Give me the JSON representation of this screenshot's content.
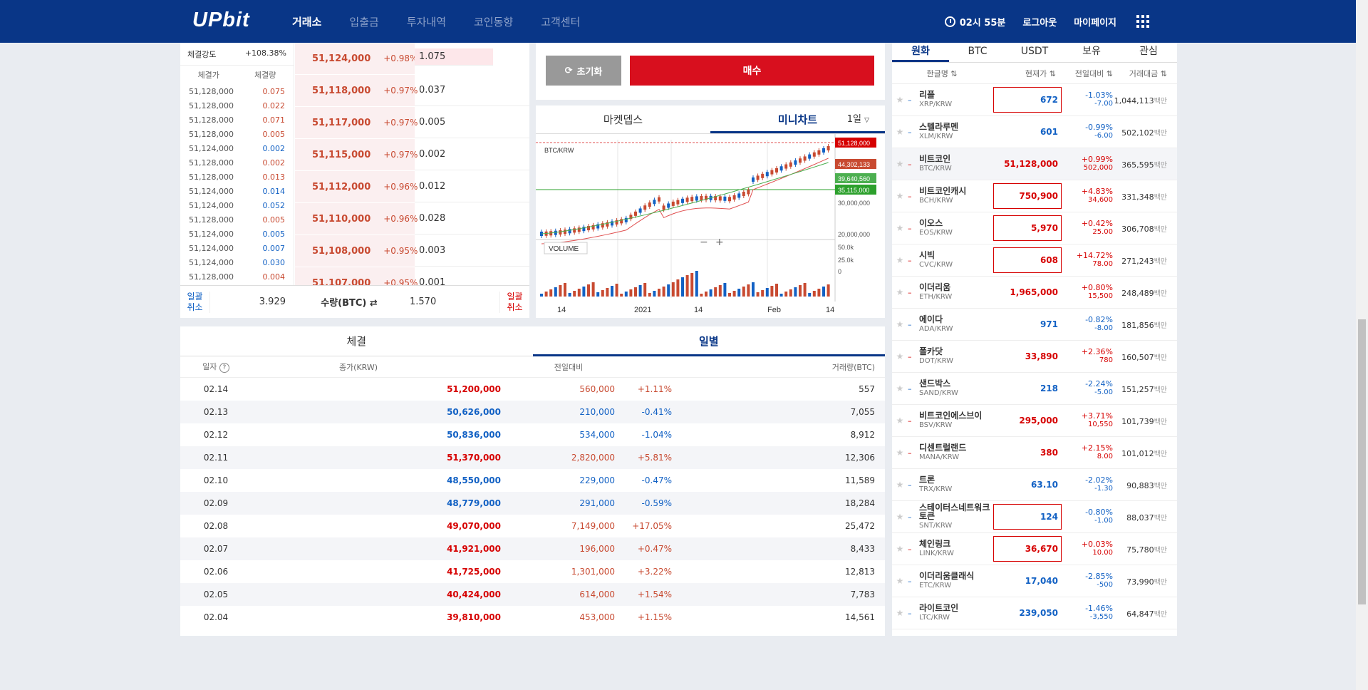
{
  "header": {
    "logo": "UPbit",
    "nav": [
      "거래소",
      "입출금",
      "투자내역",
      "코인동향",
      "고객센터"
    ],
    "time": "02시 55분",
    "logout": "로그아웃",
    "mypage": "마이페이지"
  },
  "trades": {
    "strength_label": "체결강도",
    "strength_value": "+108.38%",
    "col_price": "체결가",
    "col_qty": "체결량",
    "rows": [
      {
        "p": "51,128,000",
        "q": "0.075",
        "c": "red"
      },
      {
        "p": "51,128,000",
        "q": "0.022",
        "c": "red"
      },
      {
        "p": "51,128,000",
        "q": "0.071",
        "c": "red"
      },
      {
        "p": "51,128,000",
        "q": "0.005",
        "c": "red"
      },
      {
        "p": "51,124,000",
        "q": "0.002",
        "c": "blue"
      },
      {
        "p": "51,128,000",
        "q": "0.002",
        "c": "red"
      },
      {
        "p": "51,128,000",
        "q": "0.013",
        "c": "red"
      },
      {
        "p": "51,124,000",
        "q": "0.014",
        "c": "blue"
      },
      {
        "p": "51,124,000",
        "q": "0.052",
        "c": "blue"
      },
      {
        "p": "51,128,000",
        "q": "0.005",
        "c": "red"
      },
      {
        "p": "51,124,000",
        "q": "0.005",
        "c": "blue"
      },
      {
        "p": "51,124,000",
        "q": "0.007",
        "c": "blue"
      },
      {
        "p": "51,124,000",
        "q": "0.030",
        "c": "blue"
      },
      {
        "p": "51,128,000",
        "q": "0.004",
        "c": "red"
      }
    ]
  },
  "asks": [
    {
      "price": "51,124,000",
      "pct": "+0.98%",
      "qty": "1.075"
    },
    {
      "price": "51,118,000",
      "pct": "+0.97%",
      "qty": "0.037"
    },
    {
      "price": "51,117,000",
      "pct": "+0.97%",
      "qty": "0.005"
    },
    {
      "price": "51,115,000",
      "pct": "+0.97%",
      "qty": "0.002"
    },
    {
      "price": "51,112,000",
      "pct": "+0.96%",
      "qty": "0.012"
    },
    {
      "price": "51,110,000",
      "pct": "+0.96%",
      "qty": "0.028"
    },
    {
      "price": "51,108,000",
      "pct": "+0.95%",
      "qty": "0.003"
    },
    {
      "price": "51,107,000",
      "pct": "+0.95%",
      "qty": "0.001"
    }
  ],
  "ob_footer": {
    "cancel_left": "일괄\n취소",
    "total_left": "3.929",
    "mid_label": "수량(BTC) ⇄",
    "total_right": "1.570",
    "cancel_right": "일괄\n취소"
  },
  "order": {
    "reset": "초기화",
    "buy": "매수"
  },
  "mini": {
    "tab1": "마켓뎁스",
    "tab2": "미니차트",
    "period": "1일",
    "symbol": "BTC/KRW",
    "price_labels": [
      "51,128,000",
      "44,302,133",
      "39,640,560",
      "35,115,000"
    ],
    "axis": [
      "30,000,000",
      "20,000,000",
      "50.0k",
      "25.0k",
      "0"
    ],
    "x_ticks": [
      "14",
      "2021",
      "14",
      "Feb",
      "14"
    ],
    "volume_label": "VOLUME"
  },
  "daily": {
    "tab1": "체결",
    "tab2": "일별",
    "cols": [
      "일자",
      "종가(KRW)",
      "전일대비",
      "거래량(BTC)"
    ],
    "rows": [
      {
        "d": "02.14",
        "p": "51,200,000",
        "a": "560,000",
        "r": "+1.11%",
        "v": "557",
        "c": "red"
      },
      {
        "d": "02.13",
        "p": "50,626,000",
        "a": "210,000",
        "r": "-0.41%",
        "v": "7,055",
        "c": "blue"
      },
      {
        "d": "02.12",
        "p": "50,836,000",
        "a": "534,000",
        "r": "-1.04%",
        "v": "8,912",
        "c": "blue"
      },
      {
        "d": "02.11",
        "p": "51,370,000",
        "a": "2,820,000",
        "r": "+5.81%",
        "v": "12,306",
        "c": "red"
      },
      {
        "d": "02.10",
        "p": "48,550,000",
        "a": "229,000",
        "r": "-0.47%",
        "v": "11,589",
        "c": "blue"
      },
      {
        "d": "02.09",
        "p": "48,779,000",
        "a": "291,000",
        "r": "-0.59%",
        "v": "18,284",
        "c": "blue"
      },
      {
        "d": "02.08",
        "p": "49,070,000",
        "a": "7,149,000",
        "r": "+17.05%",
        "v": "25,472",
        "c": "red"
      },
      {
        "d": "02.07",
        "p": "41,921,000",
        "a": "196,000",
        "r": "+0.47%",
        "v": "8,433",
        "c": "red"
      },
      {
        "d": "02.06",
        "p": "41,725,000",
        "a": "1,301,000",
        "r": "+3.22%",
        "v": "12,813",
        "c": "red"
      },
      {
        "d": "02.05",
        "p": "40,424,000",
        "a": "614,000",
        "r": "+1.54%",
        "v": "7,783",
        "c": "red"
      },
      {
        "d": "02.04",
        "p": "39,810,000",
        "a": "453,000",
        "r": "+1.15%",
        "v": "14,561",
        "c": "red"
      }
    ]
  },
  "market": {
    "tabs": [
      "원화",
      "BTC",
      "USDT",
      "보유",
      "관심"
    ],
    "cols": [
      "한글명 ⇅",
      "현재가 ⇅",
      "전일대비 ⇅",
      "거래대금 ⇅"
    ],
    "unit": "백만",
    "rows": [
      {
        "n": "리플",
        "s": "XRP/KRW",
        "p": "672",
        "r": "-1.03%",
        "a": "-7.00",
        "v": "1,044,113",
        "c": "blue",
        "box": true
      },
      {
        "n": "스텔라루멘",
        "s": "XLM/KRW",
        "p": "601",
        "r": "-0.99%",
        "a": "-6.00",
        "v": "502,102",
        "c": "blue",
        "box": false
      },
      {
        "n": "비트코인",
        "s": "BTC/KRW",
        "p": "51,128,000",
        "r": "+0.99%",
        "a": "502,000",
        "v": "365,595",
        "c": "red",
        "box": false,
        "sel": true
      },
      {
        "n": "비트코인캐시",
        "s": "BCH/KRW",
        "p": "750,900",
        "r": "+4.83%",
        "a": "34,600",
        "v": "331,348",
        "c": "red",
        "box": true
      },
      {
        "n": "이오스",
        "s": "EOS/KRW",
        "p": "5,970",
        "r": "+0.42%",
        "a": "25.00",
        "v": "306,708",
        "c": "red",
        "box": true
      },
      {
        "n": "시빅",
        "s": "CVC/KRW",
        "p": "608",
        "r": "+14.72%",
        "a": "78.00",
        "v": "271,243",
        "c": "red",
        "box": true
      },
      {
        "n": "이더리움",
        "s": "ETH/KRW",
        "p": "1,965,000",
        "r": "+0.80%",
        "a": "15,500",
        "v": "248,489",
        "c": "red",
        "box": false
      },
      {
        "n": "에이다",
        "s": "ADA/KRW",
        "p": "971",
        "r": "-0.82%",
        "a": "-8.00",
        "v": "181,856",
        "c": "blue",
        "box": false
      },
      {
        "n": "폴카닷",
        "s": "DOT/KRW",
        "p": "33,890",
        "r": "+2.36%",
        "a": "780",
        "v": "160,507",
        "c": "red",
        "box": false
      },
      {
        "n": "샌드박스",
        "s": "SAND/KRW",
        "p": "218",
        "r": "-2.24%",
        "a": "-5.00",
        "v": "151,257",
        "c": "blue",
        "box": false
      },
      {
        "n": "비트코인에스브이",
        "s": "BSV/KRW",
        "p": "295,000",
        "r": "+3.71%",
        "a": "10,550",
        "v": "101,739",
        "c": "red",
        "box": false
      },
      {
        "n": "디센트럴랜드",
        "s": "MANA/KRW",
        "p": "380",
        "r": "+2.15%",
        "a": "8.00",
        "v": "101,012",
        "c": "red",
        "box": false
      },
      {
        "n": "트론",
        "s": "TRX/KRW",
        "p": "63.10",
        "r": "-2.02%",
        "a": "-1.30",
        "v": "90,883",
        "c": "blue",
        "box": false
      },
      {
        "n": "스테이터스네트워크토큰",
        "s": "SNT/KRW",
        "p": "124",
        "r": "-0.80%",
        "a": "-1.00",
        "v": "88,037",
        "c": "blue",
        "box": true
      },
      {
        "n": "체인링크",
        "s": "LINK/KRW",
        "p": "36,670",
        "r": "+0.03%",
        "a": "10.00",
        "v": "75,780",
        "c": "red",
        "box": true
      },
      {
        "n": "이더리움클래식",
        "s": "ETC/KRW",
        "p": "17,040",
        "r": "-2.85%",
        "a": "-500",
        "v": "73,990",
        "c": "blue",
        "box": false
      },
      {
        "n": "라이트코인",
        "s": "LTC/KRW",
        "p": "239,050",
        "r": "-1.46%",
        "a": "-3,550",
        "v": "64,847",
        "c": "blue",
        "box": false
      }
    ]
  },
  "colors": {
    "navy": "#093687",
    "up": "#c84a31",
    "down": "#1261c4",
    "buy": "#d80f1e"
  }
}
